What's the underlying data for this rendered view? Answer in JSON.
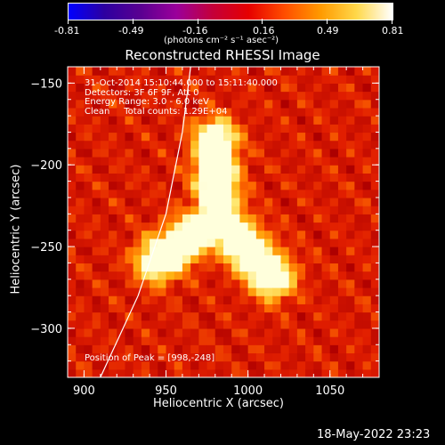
{
  "colorbar": {
    "ticks": [
      "-0.81",
      "-0.49",
      "-0.16",
      "0.16",
      "0.49",
      "0.81"
    ],
    "units_line": "(photons cm⁻² s⁻¹ asec⁻²)",
    "stops": [
      "#0000ff",
      "#2d00a0",
      "#5a0091",
      "#9b009b",
      "#c4003a",
      "#e60000",
      "#ff4d00",
      "#ff9a00",
      "#ffd84a",
      "#ffffff"
    ]
  },
  "chart_data": {
    "type": "heatmap",
    "title": "Reconstructed RHESSI Image",
    "xlabel": "Heliocentric X (arcsec)",
    "ylabel": "Heliocentric Y (arcsec)",
    "xlim": [
      890,
      1080
    ],
    "ylim": [
      -330,
      -140
    ],
    "x_ticks": [
      "900",
      "950",
      "1000",
      "1050"
    ],
    "y_ticks": [
      "-150",
      "-200",
      "-250",
      "-300"
    ],
    "x_tick_values": [
      900,
      950,
      1000,
      1050
    ],
    "y_tick_values": [
      -150,
      -200,
      -250,
      -300
    ],
    "colorbar_range": [
      -0.81,
      0.81
    ],
    "peak_position": [
      998,
      -248
    ],
    "info_lines": [
      "31-Oct-2014 15:10:44.000 to 15:11:40.000",
      "Detectors: 3F 6F 9F, Att 0",
      "Energy Range: 3.0 - 6.0 keV",
      "Clean     Total counts: 1.29E+04"
    ],
    "peak_text": "Position of Peak = [998,-248]",
    "limb_points": [
      [
        910,
        -330
      ],
      [
        933,
        -280
      ],
      [
        950,
        -230
      ],
      [
        960,
        -180
      ],
      [
        965,
        -140
      ]
    ]
  },
  "footer": {
    "date": "18-May-2022 23:23"
  }
}
